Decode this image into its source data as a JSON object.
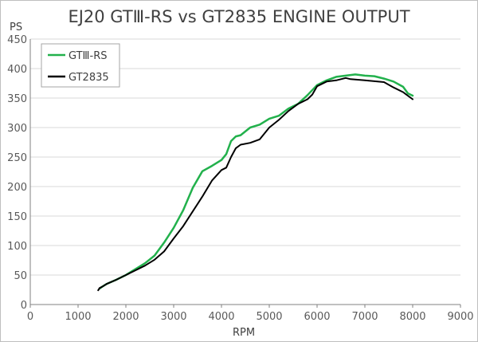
{
  "chart_data": {
    "type": "line",
    "title": "EJ20 GTⅢ-RS vs GT2835 ENGINE OUTPUT",
    "xlabel": "RPM",
    "ylabel": "PS",
    "xlim": [
      0,
      9000
    ],
    "ylim": [
      0,
      450
    ],
    "xticks": [
      0,
      1000,
      2000,
      3000,
      4000,
      5000,
      6000,
      7000,
      8000,
      9000
    ],
    "yticks": [
      0,
      50,
      100,
      150,
      200,
      250,
      300,
      350,
      400,
      450
    ],
    "grid": "horizontal",
    "legend": "top-left",
    "series": [
      {
        "name": "GTⅢ-RS",
        "color": "#22b14c",
        "points": [
          [
            1450,
            27
          ],
          [
            1500,
            30
          ],
          [
            1600,
            35
          ],
          [
            1800,
            42
          ],
          [
            2000,
            50
          ],
          [
            2200,
            60
          ],
          [
            2400,
            70
          ],
          [
            2600,
            83
          ],
          [
            2800,
            105
          ],
          [
            3000,
            130
          ],
          [
            3200,
            160
          ],
          [
            3400,
            198
          ],
          [
            3600,
            226
          ],
          [
            3800,
            235
          ],
          [
            4000,
            245
          ],
          [
            4100,
            255
          ],
          [
            4200,
            277
          ],
          [
            4300,
            285
          ],
          [
            4400,
            287
          ],
          [
            4600,
            300
          ],
          [
            4800,
            305
          ],
          [
            5000,
            315
          ],
          [
            5200,
            320
          ],
          [
            5400,
            332
          ],
          [
            5600,
            340
          ],
          [
            5800,
            355
          ],
          [
            6000,
            372
          ],
          [
            6200,
            380
          ],
          [
            6400,
            386
          ],
          [
            6600,
            388
          ],
          [
            6800,
            390
          ],
          [
            7000,
            388
          ],
          [
            7200,
            387
          ],
          [
            7400,
            383
          ],
          [
            7600,
            378
          ],
          [
            7800,
            369
          ],
          [
            7900,
            358
          ],
          [
            8000,
            354
          ]
        ]
      },
      {
        "name": "GT2835",
        "color": "#000000",
        "points": [
          [
            1420,
            24
          ],
          [
            1450,
            28
          ],
          [
            1500,
            30
          ],
          [
            1600,
            35
          ],
          [
            1800,
            42
          ],
          [
            2000,
            50
          ],
          [
            2200,
            58
          ],
          [
            2400,
            66
          ],
          [
            2600,
            76
          ],
          [
            2800,
            90
          ],
          [
            3000,
            112
          ],
          [
            3200,
            133
          ],
          [
            3400,
            158
          ],
          [
            3600,
            183
          ],
          [
            3800,
            210
          ],
          [
            4000,
            228
          ],
          [
            4100,
            232
          ],
          [
            4200,
            250
          ],
          [
            4300,
            265
          ],
          [
            4400,
            271
          ],
          [
            4600,
            274
          ],
          [
            4800,
            280
          ],
          [
            5000,
            300
          ],
          [
            5200,
            313
          ],
          [
            5400,
            328
          ],
          [
            5600,
            340
          ],
          [
            5800,
            348
          ],
          [
            5900,
            356
          ],
          [
            6000,
            370
          ],
          [
            6200,
            378
          ],
          [
            6400,
            380
          ],
          [
            6600,
            384
          ],
          [
            6700,
            382
          ],
          [
            7000,
            380
          ],
          [
            7400,
            377
          ],
          [
            7600,
            368
          ],
          [
            7800,
            360
          ],
          [
            8000,
            348
          ]
        ]
      }
    ]
  }
}
